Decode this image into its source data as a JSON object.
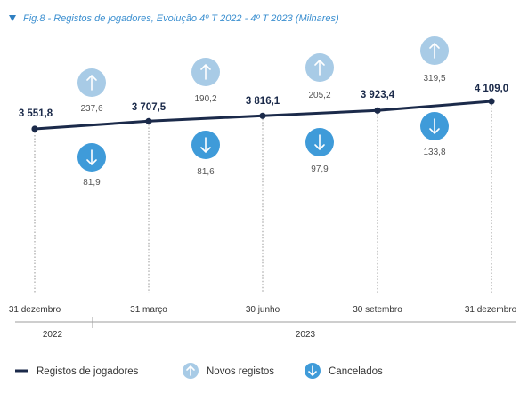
{
  "title": "Fig.8 - Registos de jogadores, Evolução 4º T 2022 - 4º T 2023 (Milhares)",
  "colors": {
    "title": "#3b8fd0",
    "line": "#1b2a4a",
    "novos": "#a8cbe6",
    "cancelados": "#3f9bd9",
    "axis": "#9e9e9e"
  },
  "icons": {
    "novos": "arrow-up-icon",
    "cancelados": "arrow-down-icon",
    "title_marker": "triangle-down-icon"
  },
  "chart_data": {
    "type": "line",
    "title": "Fig.8 - Registos de jogadores, Evolução 4º T 2022 - 4º T 2023 (Milhares)",
    "categories": [
      "31 dezembro",
      "31 março",
      "30 junho",
      "30 setembro",
      "31  dezembro"
    ],
    "years": [
      {
        "label": "2022"
      },
      {
        "label": "2023"
      }
    ],
    "series": [
      {
        "name": "Registos de jogadores",
        "values": [
          3551.8,
          3707.5,
          3816.1,
          3923.4,
          4109.0
        ]
      },
      {
        "name": "Novos registos",
        "values": [
          null,
          237.6,
          190.2,
          205.2,
          319.5
        ]
      },
      {
        "name": "Cancelados",
        "values": [
          null,
          81.9,
          81.6,
          97.9,
          133.8
        ]
      }
    ],
    "value_labels": {
      "registos": [
        "3 551,8",
        "3 707,5",
        "3 816,1",
        "3 923,4",
        "4 109,0"
      ],
      "novos": [
        "237,6",
        "190,2",
        "205,2",
        "319,5"
      ],
      "cancelados": [
        "81,9",
        "81,6",
        "97,9",
        "133,8"
      ]
    },
    "grid": false,
    "legend_position": "bottom"
  },
  "legend": [
    {
      "label": "Registos de jogadores",
      "kind": "line"
    },
    {
      "label": "Novos registos",
      "kind": "novos"
    },
    {
      "label": "Cancelados",
      "kind": "cancelados"
    }
  ]
}
